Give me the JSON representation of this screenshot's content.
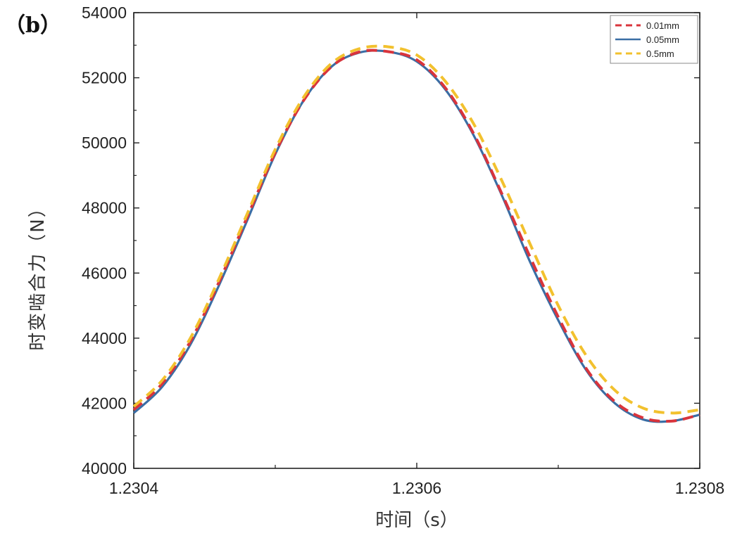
{
  "panel_label": "（b）",
  "chart_data": {
    "type": "line",
    "title": "",
    "xlabel": "时间（s）",
    "ylabel": "时变啮合力（N）",
    "xlim": [
      1.2304,
      1.2308
    ],
    "ylim": [
      40000,
      54000
    ],
    "x_ticks": [
      1.2304,
      1.2306,
      1.2308
    ],
    "x_tick_labels": [
      "1.2304",
      "1.2306",
      "1.2308"
    ],
    "y_ticks": [
      40000,
      42000,
      44000,
      46000,
      48000,
      50000,
      52000,
      54000
    ],
    "y_tick_labels": [
      "40000",
      "42000",
      "44000",
      "46000",
      "48000",
      "50000",
      "52000",
      "54000"
    ],
    "legend_position": "top-right",
    "grid": false,
    "series": [
      {
        "name": "0.01mm",
        "color": "#d9343c",
        "style": "dashed",
        "x": [
          1.2304,
          1.23042,
          1.23044,
          1.23046,
          1.23048,
          1.2305,
          1.23052,
          1.23054,
          1.23056,
          1.23058,
          1.2306,
          1.23062,
          1.23064,
          1.23066,
          1.23068,
          1.2307,
          1.23072,
          1.23074,
          1.23076,
          1.23078,
          1.2308
        ],
        "y": [
          41800,
          42600,
          43900,
          45700,
          47700,
          49700,
          51300,
          52350,
          52800,
          52800,
          52550,
          51700,
          50300,
          48450,
          46500,
          44650,
          43050,
          42050,
          41550,
          41450,
          41650
        ]
      },
      {
        "name": "0.05mm",
        "color": "#3a6ea5",
        "style": "solid",
        "x": [
          1.2304,
          1.23042,
          1.23044,
          1.23046,
          1.23048,
          1.2305,
          1.23052,
          1.23054,
          1.23056,
          1.23058,
          1.2306,
          1.23062,
          1.23064,
          1.23066,
          1.23068,
          1.2307,
          1.23072,
          1.23074,
          1.23076,
          1.23078,
          1.2308
        ],
        "y": [
          41700,
          42500,
          43800,
          45600,
          47600,
          49650,
          51300,
          52350,
          52780,
          52800,
          52500,
          51650,
          50250,
          48400,
          46350,
          44550,
          43000,
          42000,
          41500,
          41450,
          41650
        ]
      },
      {
        "name": "0.5mm",
        "color": "#f2c12e",
        "style": "dashed",
        "x": [
          1.2304,
          1.23042,
          1.23044,
          1.23046,
          1.23048,
          1.2305,
          1.23052,
          1.23054,
          1.23056,
          1.23058,
          1.2306,
          1.23062,
          1.23064,
          1.23066,
          1.23068,
          1.2307,
          1.23072,
          1.23074,
          1.23076,
          1.23078,
          1.2308
        ],
        "y": [
          41900,
          42700,
          44000,
          45800,
          47800,
          49800,
          51400,
          52450,
          52900,
          52950,
          52700,
          51900,
          50600,
          48850,
          46900,
          45000,
          43450,
          42400,
          41850,
          41700,
          41800
        ]
      }
    ]
  }
}
